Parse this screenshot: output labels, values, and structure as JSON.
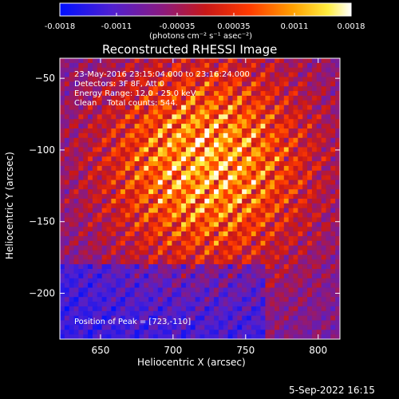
{
  "chart_data": {
    "type": "heatmap",
    "title": "Reconstructed RHESSI Image",
    "xlabel": "Heliocentric X (arcsec)",
    "ylabel": "Heliocentric Y (arcsec)",
    "xlim": [
      622,
      815
    ],
    "ylim": [
      -232,
      -36
    ],
    "x_ticks": [
      650,
      700,
      750,
      800
    ],
    "y_ticks": [
      -50,
      -100,
      -150,
      -200
    ],
    "colormap": "rainbow-heat (blue-purple-red-orange-yellow-white)",
    "colorbar": {
      "range": [
        -0.0018,
        0.0018
      ],
      "ticks": [
        "-0.0018",
        "-0.0011",
        "-0.00035",
        "0.00035",
        "0.0011",
        "0.0018"
      ],
      "unit_label": "(photons cm⁻² s⁻¹ asec⁻²)",
      "position": "top"
    },
    "peak": {
      "x": 723,
      "y": -110
    },
    "annotations": {
      "time_range": "23-May-2016 23:15:04.000 to 23:16:24.000",
      "detectors": "Detectors: 3F 8F, Att 0",
      "energy": "Energy Range: 12.0 - 25.0 keV",
      "clean": "Clean    Total counts: 544.",
      "peak_text": "Position of Peak = [723,-110]"
    }
  },
  "footer": {
    "timestamp": "5-Sep-2022 16:15"
  }
}
